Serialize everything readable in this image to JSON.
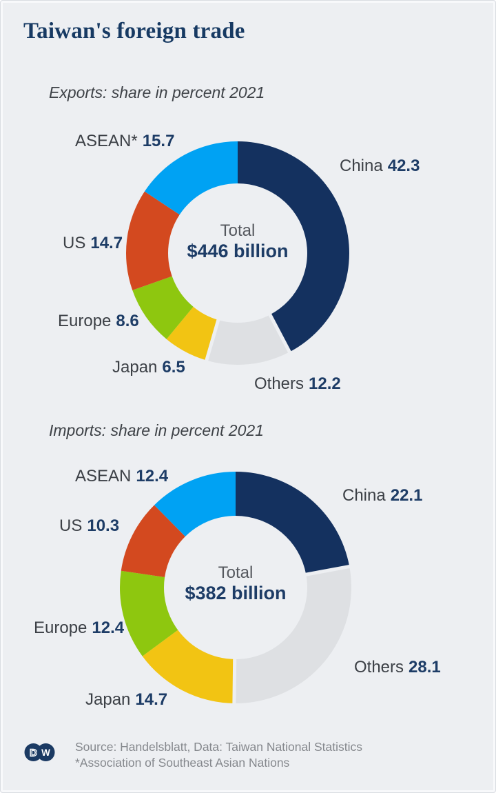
{
  "title": "Taiwan's foreign trade",
  "colors": {
    "background": "#edeff2",
    "frame_edge": "#f8f9fb",
    "title_navy": "#173a63",
    "subtitle_gray": "#3e4247",
    "label_name_gray": "#3c4046",
    "label_value_navy": "#1d3c66",
    "center_label_gray": "#55585e",
    "source_gray": "#85888d",
    "china_navy": "#14315f",
    "others_gray": "#dee0e3",
    "japan_yellow": "#f2c413",
    "europe_green": "#8ec70f",
    "us_red": "#d3491f",
    "asean_blue": "#00a2f3",
    "logo_navy": "#1b3a63"
  },
  "chart_data": [
    {
      "type": "pie",
      "subtype": "donut",
      "title": "Exports: share in percent 2021",
      "unit": "percent",
      "center_label": "Total",
      "center_value": "$446 billion",
      "start_angle": "12 o'clock, clockwise",
      "legend_position": "labels around donut",
      "segments": [
        {
          "label": "China",
          "display_label": "China",
          "value": 42.3,
          "color": "#14315f"
        },
        {
          "label": "Others",
          "display_label": "Others",
          "value": 12.2,
          "color": "#dee0e3",
          "separated": true
        },
        {
          "label": "Japan",
          "display_label": "Japan",
          "value": 6.5,
          "color": "#f2c413"
        },
        {
          "label": "Europe",
          "display_label": "Europe",
          "value": 8.6,
          "color": "#8ec70f"
        },
        {
          "label": "US",
          "display_label": "US",
          "value": 14.7,
          "color": "#d3491f"
        },
        {
          "label": "ASEAN",
          "display_label": "ASEAN*",
          "value": 15.7,
          "color": "#00a2f3"
        }
      ]
    },
    {
      "type": "pie",
      "subtype": "donut",
      "title": "Imports: share in percent 2021",
      "unit": "percent",
      "center_label": "Total",
      "center_value": "$382 billion",
      "start_angle": "12 o'clock, clockwise",
      "legend_position": "labels around donut",
      "segments": [
        {
          "label": "China",
          "display_label": "China",
          "value": 22.1,
          "color": "#14315f"
        },
        {
          "label": "Others",
          "display_label": "Others",
          "value": 28.1,
          "color": "#dee0e3",
          "separated": true
        },
        {
          "label": "Japan",
          "display_label": "Japan",
          "value": 14.7,
          "color": "#f2c413"
        },
        {
          "label": "Europe",
          "display_label": "Europe",
          "value": 12.4,
          "color": "#8ec70f"
        },
        {
          "label": "US",
          "display_label": "US",
          "value": 10.3,
          "color": "#d3491f"
        },
        {
          "label": "ASEAN",
          "display_label": "ASEAN",
          "value": 12.4,
          "color": "#00a2f3"
        }
      ]
    }
  ],
  "footer": {
    "line1": "Source: Handelsblatt, Data: Taiwan National Statistics",
    "line2": "*Association of Southeast Asian Nations",
    "logo": {
      "d": "D",
      "w": "W"
    }
  }
}
